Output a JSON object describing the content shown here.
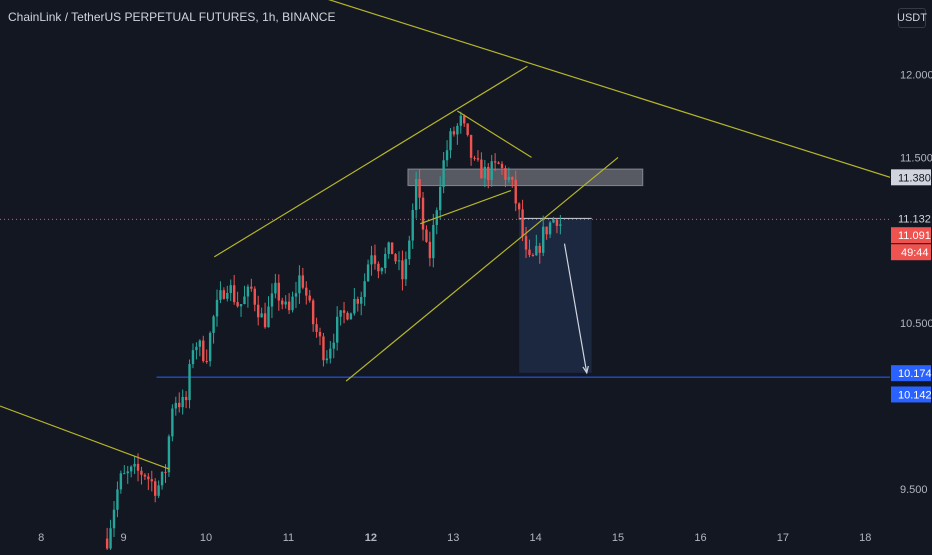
{
  "header": {
    "symbol_title": "ChainLink / TetherUS PERPETUAL FUTURES, 1h, BINANCE",
    "currency": "USDT"
  },
  "colors": {
    "background": "#131722",
    "up_candle": "#26a69a",
    "down_candle": "#ef5350",
    "trendline": "#b5b52a",
    "horizontal_level": "#2962ff",
    "last_price": "#ef5350",
    "position_zone": "#1e2a45",
    "supply_zone": "#5d6068"
  },
  "price_axis": {
    "ticks": [
      "12.000",
      "11.500",
      "10.500",
      "9.500"
    ],
    "badges": {
      "supply_level": "11.380",
      "current_level": "11.132",
      "last_price": "11.091",
      "countdown": "49:44",
      "target_level": "10.174",
      "target_level_2": "10.142"
    }
  },
  "time_axis": {
    "ticks": [
      "8",
      "9",
      "10",
      "11",
      "12",
      "13",
      "14",
      "15",
      "16",
      "17",
      "18"
    ],
    "bold_tick": "12"
  },
  "chart_data": {
    "type": "candlestick",
    "title": "ChainLink / TetherUS PERPETUAL FUTURES, 1h, BINANCE",
    "timeframe": "1h",
    "x_unit": "day of month",
    "xlim": [
      7.5,
      18.3
    ],
    "ylim": [
      9.3,
      12.45
    ],
    "y_scale": "linear",
    "grid": false,
    "price_path": [
      [
        8.8,
        9.2
      ],
      [
        8.95,
        9.55
      ],
      [
        9.1,
        9.6
      ],
      [
        9.25,
        9.6
      ],
      [
        9.4,
        9.5
      ],
      [
        9.5,
        9.58
      ],
      [
        9.6,
        10.05
      ],
      [
        9.75,
        10.0
      ],
      [
        9.85,
        10.4
      ],
      [
        10.0,
        10.3
      ],
      [
        10.1,
        10.55
      ],
      [
        10.25,
        10.75
      ],
      [
        10.4,
        10.6
      ],
      [
        10.55,
        10.7
      ],
      [
        10.7,
        10.5
      ],
      [
        10.85,
        10.7
      ],
      [
        11.0,
        10.55
      ],
      [
        11.15,
        10.8
      ],
      [
        11.3,
        10.5
      ],
      [
        11.45,
        10.3
      ],
      [
        11.6,
        10.5
      ],
      [
        11.75,
        10.6
      ],
      [
        11.9,
        10.7
      ],
      [
        12.0,
        10.95
      ],
      [
        12.1,
        10.85
      ],
      [
        12.25,
        10.95
      ],
      [
        12.4,
        10.75
      ],
      [
        12.55,
        11.35
      ],
      [
        12.7,
        10.85
      ],
      [
        12.85,
        11.4
      ],
      [
        12.95,
        11.6
      ],
      [
        13.1,
        11.72
      ],
      [
        13.25,
        11.45
      ],
      [
        13.4,
        11.4
      ],
      [
        13.55,
        11.45
      ],
      [
        13.7,
        11.35
      ],
      [
        13.8,
        11.15
      ],
      [
        13.9,
        10.85
      ],
      [
        14.0,
        10.9
      ],
      [
        14.1,
        11.05
      ],
      [
        14.25,
        11.15
      ],
      [
        14.3,
        11.1
      ]
    ],
    "last_price": 11.091,
    "levels": [
      {
        "label": "11.380",
        "value": 11.38
      },
      {
        "label": "11.132",
        "value": 11.132
      },
      {
        "label": "10.174",
        "value": 10.174
      },
      {
        "label": "10.142",
        "value": 10.142
      }
    ],
    "trendlines": [
      {
        "from": [
          7.5,
          10.0
        ],
        "to": [
          9.55,
          9.62
        ]
      },
      {
        "from": [
          9.6,
          12.75
        ],
        "to": [
          18.3,
          11.38
        ]
      },
      {
        "from": [
          10.1,
          10.9
        ],
        "to": [
          13.9,
          12.05
        ]
      },
      {
        "from": [
          11.7,
          10.15
        ],
        "to": [
          15.0,
          11.5
        ]
      },
      {
        "from": [
          12.6,
          11.1
        ],
        "to": [
          13.7,
          11.3
        ]
      },
      {
        "from": [
          13.05,
          11.78
        ],
        "to": [
          13.95,
          11.5
        ]
      }
    ],
    "zones": [
      {
        "name": "supply",
        "x": [
          12.45,
          15.3
        ],
        "y": [
          11.33,
          11.43
        ]
      },
      {
        "name": "position",
        "x": [
          13.8,
          14.68
        ],
        "y": [
          10.2,
          11.13
        ]
      }
    ],
    "arrow": {
      "from": [
        14.35,
        10.98
      ],
      "to": [
        14.62,
        10.2
      ]
    }
  }
}
